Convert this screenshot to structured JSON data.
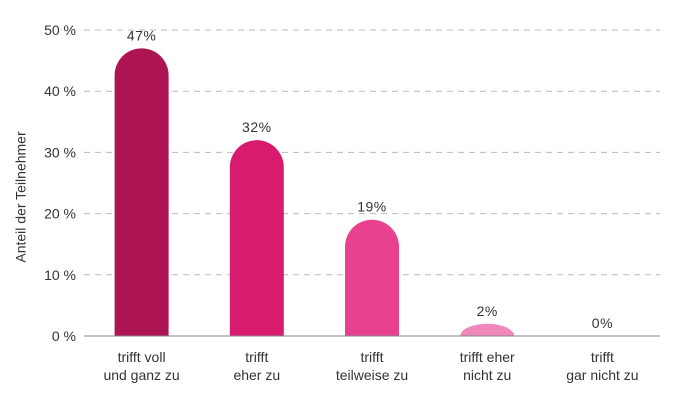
{
  "chart_data": {
    "type": "bar",
    "title": "",
    "xlabel": "",
    "ylabel": "Anteil der Teilnehmer",
    "ylim": [
      0,
      50
    ],
    "yticks": [
      0,
      10,
      20,
      30,
      40,
      50
    ],
    "ytick_labels": [
      "0 %",
      "10 %",
      "20 %",
      "30 %",
      "40 %",
      "50 %"
    ],
    "grid": true,
    "categories": [
      [
        "trifft voll",
        "und ganz zu"
      ],
      [
        "trifft",
        "eher zu"
      ],
      [
        "trifft",
        "teilweise zu"
      ],
      [
        "trifft eher",
        "nicht zu"
      ],
      [
        "trifft",
        "gar nicht zu"
      ]
    ],
    "values": [
      47,
      32,
      19,
      2,
      0
    ],
    "data_labels": [
      "47%",
      "32%",
      "19%",
      "2%",
      "0%"
    ],
    "colors": [
      "#ad1452",
      "#d81b6e",
      "#e8418f",
      "#f088bb",
      "#f5b8d4"
    ]
  }
}
